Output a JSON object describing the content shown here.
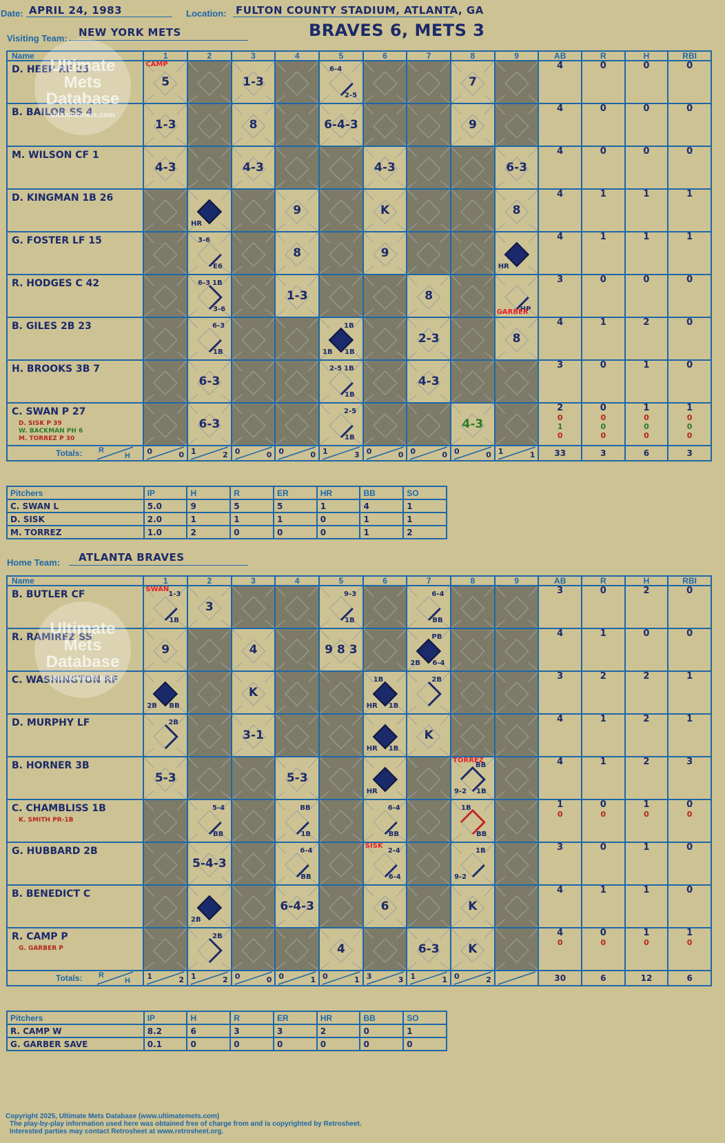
{
  "header": {
    "date_label": "Date:",
    "date": "APRIL 24, 1983",
    "location_label": "Location:",
    "location": "FULTON COUNTY STADIUM, ATLANTA, GA",
    "visiting_label": "Visiting Team:",
    "visiting_team": "NEW YORK METS",
    "home_label": "Home Team:",
    "home_team": "ATLANTA BRAVES",
    "final_score": "BRAVES 6, METS 3"
  },
  "columns": {
    "name": "Name",
    "innings": [
      "1",
      "2",
      "3",
      "4",
      "5",
      "6",
      "7",
      "8",
      "9"
    ],
    "stats": [
      "AB",
      "R",
      "H",
      "RBI"
    ],
    "totals": "Totals:",
    "rh_r": "R",
    "rh_h": "H"
  },
  "pitch_columns": [
    "Pitchers",
    "IP",
    "H",
    "R",
    "ER",
    "HR",
    "BB",
    "SO"
  ],
  "watermark": {
    "line1": "Ultimate",
    "line2": "Mets",
    "line3": "Database",
    "line4": "ultimatemets.com"
  },
  "visitors": {
    "lineup": [
      {
        "name": "D. HEEP RF  25",
        "subs": [],
        "cells": [
          {
            "i": 1,
            "t": "5",
            "top": "CAMP"
          },
          {
            "i": 3,
            "t": "1-3"
          },
          {
            "i": 5,
            "t": "",
            "ul": "6-4",
            "br": "2-5",
            "path": "first"
          },
          {
            "i": 8,
            "t": "7"
          }
        ],
        "dark": [
          2,
          4,
          6,
          7,
          9
        ],
        "stats": [
          [
            "4",
            "0",
            "0",
            "0"
          ]
        ]
      },
      {
        "name": "B. BAILOR SS  4",
        "subs": [],
        "cells": [
          {
            "i": 1,
            "t": "1-3"
          },
          {
            "i": 3,
            "t": "8"
          },
          {
            "i": 5,
            "t": "6-4-3"
          },
          {
            "i": 8,
            "t": "9"
          }
        ],
        "dark": [
          2,
          4,
          6,
          7,
          9
        ],
        "stats": [
          [
            "4",
            "0",
            "0",
            "0"
          ]
        ]
      },
      {
        "name": "M. WILSON CF  1",
        "subs": [],
        "cells": [
          {
            "i": 1,
            "t": "4-3"
          },
          {
            "i": 3,
            "t": "4-3"
          },
          {
            "i": 6,
            "t": "4-3"
          },
          {
            "i": 9,
            "t": "6-3"
          }
        ],
        "dark": [
          2,
          4,
          5,
          7,
          8
        ],
        "stats": [
          [
            "4",
            "0",
            "0",
            "0"
          ]
        ]
      },
      {
        "name": "D. KINGMAN 1B  26",
        "subs": [],
        "cells": [
          {
            "i": 2,
            "t": "",
            "bl": "HR",
            "path": "run"
          },
          {
            "i": 4,
            "t": "9"
          },
          {
            "i": 6,
            "t": "K"
          },
          {
            "i": 9,
            "t": "8"
          }
        ],
        "dark": [
          1,
          3,
          5,
          7,
          8
        ],
        "stats": [
          [
            "4",
            "1",
            "1",
            "1"
          ]
        ]
      },
      {
        "name": "G. FOSTER LF  15",
        "subs": [],
        "cells": [
          {
            "i": 2,
            "t": "",
            "ul": "3-6",
            "br": "E6",
            "path": "first"
          },
          {
            "i": 4,
            "t": "8"
          },
          {
            "i": 6,
            "t": "9"
          },
          {
            "i": 9,
            "t": "",
            "bl": "HR",
            "path": "run"
          }
        ],
        "dark": [
          1,
          3,
          5,
          7,
          8
        ],
        "stats": [
          [
            "4",
            "1",
            "1",
            "1"
          ]
        ]
      },
      {
        "name": "R. HODGES C  42",
        "subs": [],
        "cells": [
          {
            "i": 2,
            "t": "",
            "ul": "6-3",
            "ur": "1B",
            "br": "3-6",
            "path": "second"
          },
          {
            "i": 4,
            "t": "1-3"
          },
          {
            "i": 7,
            "t": "8"
          },
          {
            "i": 9,
            "t": "",
            "br": "HP",
            "bot": "GARBER",
            "path": "first"
          }
        ],
        "dark": [
          1,
          3,
          5,
          6,
          8
        ],
        "stats": [
          [
            "3",
            "0",
            "0",
            "0"
          ]
        ]
      },
      {
        "name": "B. GILES 2B  23",
        "subs": [],
        "cells": [
          {
            "i": 2,
            "t": "",
            "ur": "6-3",
            "br": "1B",
            "path": "first"
          },
          {
            "i": 5,
            "t": "",
            "ur": "1B",
            "bl": "1B",
            "br": "1B",
            "path": "run"
          },
          {
            "i": 7,
            "t": "2-3"
          },
          {
            "i": 9,
            "t": "8"
          }
        ],
        "dark": [
          1,
          3,
          4,
          6,
          8
        ],
        "stats": [
          [
            "4",
            "1",
            "2",
            "0"
          ]
        ]
      },
      {
        "name": "H. BROOKS 3B  7",
        "subs": [],
        "cells": [
          {
            "i": 2,
            "t": "6-3"
          },
          {
            "i": 5,
            "t": "",
            "ul": "2-5",
            "ur": "1B",
            "br": "1B",
            "path": "first"
          },
          {
            "i": 7,
            "t": "4-3"
          }
        ],
        "dark": [
          1,
          3,
          4,
          6,
          8,
          9
        ],
        "stats": [
          [
            "3",
            "0",
            "1",
            "0"
          ]
        ]
      },
      {
        "name": "C. SWAN P  27",
        "subs": [
          {
            "t": "D. SISK P  39",
            "c": "r"
          },
          {
            "t": "W. BACKMAN PH  6",
            "c": "g"
          },
          {
            "t": "M. TORREZ P  30",
            "c": "r"
          }
        ],
        "cells": [
          {
            "i": 2,
            "t": "6-3"
          },
          {
            "i": 5,
            "t": "",
            "ur": "2-5",
            "br": "1B",
            "path": "first"
          },
          {
            "i": 8,
            "t": "4-3",
            "green": true
          }
        ],
        "dark": [
          1,
          3,
          4,
          6,
          7,
          9
        ],
        "stats": [
          [
            "2",
            "0",
            "1",
            "1"
          ],
          [
            "0",
            "0",
            "0",
            "0",
            "r"
          ],
          [
            "1",
            "0",
            "0",
            "0",
            "g"
          ],
          [
            "0",
            "0",
            "0",
            "0",
            "r"
          ]
        ]
      }
    ],
    "totals_rh": [
      [
        "0",
        "0"
      ],
      [
        "1",
        "2"
      ],
      [
        "0",
        "0"
      ],
      [
        "0",
        "0"
      ],
      [
        "1",
        "3"
      ],
      [
        "0",
        "0"
      ],
      [
        "0",
        "0"
      ],
      [
        "0",
        "0"
      ],
      [
        "1",
        "1"
      ]
    ],
    "totals_stats": [
      "33",
      "3",
      "6",
      "3"
    ],
    "pitchers": [
      [
        "C. SWAN  L",
        "5.0",
        "9",
        "5",
        "5",
        "1",
        "4",
        "1"
      ],
      [
        "D. SISK",
        "2.0",
        "1",
        "1",
        "1",
        "0",
        "1",
        "1"
      ],
      [
        "M. TORREZ",
        "1.0",
        "2",
        "0",
        "0",
        "0",
        "1",
        "2"
      ]
    ]
  },
  "home": {
    "lineup": [
      {
        "name": "B. BUTLER CF",
        "subs": [],
        "cells": [
          {
            "i": 1,
            "t": "",
            "ur": "1-3",
            "br": "1B",
            "top": "SWAN",
            "path": "first"
          },
          {
            "i": 2,
            "t": "3"
          },
          {
            "i": 5,
            "t": "",
            "ur": "9-3",
            "br": "1B",
            "path": "first"
          },
          {
            "i": 7,
            "t": "",
            "ur": "6-4",
            "br": "BB",
            "path": "first"
          }
        ],
        "dark": [
          3,
          4,
          6,
          8,
          9
        ],
        "stats": [
          [
            "3",
            "0",
            "2",
            "0"
          ]
        ]
      },
      {
        "name": "R. RAMIREZ SS",
        "subs": [],
        "cells": [
          {
            "i": 1,
            "t": "9"
          },
          {
            "i": 3,
            "t": "4"
          },
          {
            "i": 5,
            "t": "9 8 3"
          },
          {
            "i": 7,
            "t": "",
            "ur": "PB",
            "bl": "2B",
            "br": "6-4",
            "path": "run"
          }
        ],
        "dark": [
          2,
          4,
          6,
          8,
          9
        ],
        "stats": [
          [
            "4",
            "1",
            "0",
            "0"
          ]
        ]
      },
      {
        "name": "C. WASHINGTON RF",
        "subs": [],
        "cells": [
          {
            "i": 1,
            "t": "",
            "bl": "2B",
            "br": "BB",
            "path": "run"
          },
          {
            "i": 3,
            "t": "K"
          },
          {
            "i": 6,
            "t": "",
            "ul": "1B",
            "bl": "HR",
            "br": "1B",
            "path": "run"
          },
          {
            "i": 7,
            "t": "",
            "ur": "2B",
            "path": "second"
          }
        ],
        "dark": [
          2,
          4,
          5,
          8,
          9
        ],
        "stats": [
          [
            "3",
            "2",
            "2",
            "1"
          ]
        ]
      },
      {
        "name": "D. MURPHY LF",
        "subs": [],
        "cells": [
          {
            "i": 1,
            "t": "",
            "ur": "2B",
            "path": "second"
          },
          {
            "i": 3,
            "t": "3-1"
          },
          {
            "i": 6,
            "t": "",
            "bl": "HR",
            "br": "1B",
            "path": "run"
          },
          {
            "i": 7,
            "t": "K"
          }
        ],
        "dark": [
          2,
          4,
          5,
          8,
          9
        ],
        "stats": [
          [
            "4",
            "1",
            "2",
            "1"
          ]
        ]
      },
      {
        "name": "B. HORNER 3B",
        "subs": [],
        "cells": [
          {
            "i": 1,
            "t": "5-3"
          },
          {
            "i": 4,
            "t": "5-3"
          },
          {
            "i": 6,
            "t": "",
            "bl": "HR",
            "path": "run"
          },
          {
            "i": 8,
            "t": "",
            "ur": "BB",
            "bl": "9-2",
            "br": "1B",
            "top": "TORREZ",
            "path": "third"
          }
        ],
        "dark": [
          2,
          3,
          5,
          7,
          9
        ],
        "stats": [
          [
            "4",
            "1",
            "2",
            "3"
          ]
        ]
      },
      {
        "name": "C. CHAMBLISS 1B",
        "subs": [
          {
            "t": "K. SMITH PR-1B",
            "c": "r"
          }
        ],
        "cells": [
          {
            "i": 2,
            "t": "",
            "ur": "5-4",
            "br": "BB",
            "path": "first"
          },
          {
            "i": 4,
            "t": "",
            "ur": "BB",
            "br": "1B",
            "path": "first"
          },
          {
            "i": 6,
            "t": "",
            "ur": "6-4",
            "br": "BB",
            "path": "first"
          },
          {
            "i": 8,
            "t": "",
            "ul": "1B",
            "br": "BB",
            "path": "thirdred"
          }
        ],
        "dark": [
          1,
          3,
          5,
          7,
          9
        ],
        "stats": [
          [
            "1",
            "0",
            "1",
            "0"
          ],
          [
            "0",
            "0",
            "0",
            "0",
            "r"
          ]
        ]
      },
      {
        "name": "G. HUBBARD 2B",
        "subs": [],
        "cells": [
          {
            "i": 2,
            "t": "5-4-3"
          },
          {
            "i": 4,
            "t": "",
            "ur": "6-4",
            "br": "BB",
            "path": "first"
          },
          {
            "i": 6,
            "t": "",
            "ur": "2-4",
            "br": "6-4",
            "top": "SISK",
            "path": "first"
          },
          {
            "i": 8,
            "t": "",
            "ur": "1B",
            "bl": "9-2",
            "path": "first"
          }
        ],
        "dark": [
          1,
          3,
          5,
          7,
          9
        ],
        "stats": [
          [
            "3",
            "0",
            "1",
            "0"
          ]
        ]
      },
      {
        "name": "B. BENEDICT C",
        "subs": [],
        "cells": [
          {
            "i": 2,
            "t": "",
            "bl": "2B",
            "path": "run"
          },
          {
            "i": 4,
            "t": "6-4-3"
          },
          {
            "i": 6,
            "t": "6"
          },
          {
            "i": 8,
            "t": "K"
          }
        ],
        "dark": [
          1,
          3,
          5,
          7,
          9
        ],
        "stats": [
          [
            "4",
            "1",
            "1",
            "0"
          ]
        ]
      },
      {
        "name": "R. CAMP P",
        "subs": [
          {
            "t": "G. GARBER P",
            "c": "r"
          }
        ],
        "cells": [
          {
            "i": 2,
            "t": "",
            "ur": "2B",
            "path": "second"
          },
          {
            "i": 5,
            "t": "4"
          },
          {
            "i": 7,
            "t": "6-3"
          },
          {
            "i": 8,
            "t": "K"
          }
        ],
        "dark": [
          1,
          3,
          4,
          6,
          9
        ],
        "stats": [
          [
            "4",
            "0",
            "1",
            "1"
          ],
          [
            "0",
            "0",
            "0",
            "0",
            "r"
          ]
        ]
      }
    ],
    "totals_rh": [
      [
        "1",
        "2"
      ],
      [
        "1",
        "2"
      ],
      [
        "0",
        "0"
      ],
      [
        "0",
        "1"
      ],
      [
        "0",
        "1"
      ],
      [
        "3",
        "3"
      ],
      [
        "1",
        "1"
      ],
      [
        "0",
        "2"
      ],
      [
        "",
        ""
      ]
    ],
    "totals_stats": [
      "30",
      "6",
      "12",
      "6"
    ],
    "pitchers": [
      [
        "R. CAMP  W",
        "8.2",
        "6",
        "3",
        "3",
        "2",
        "0",
        "1"
      ],
      [
        "G. GARBER  SAVE",
        "0.1",
        "0",
        "0",
        "0",
        "0",
        "0",
        "0"
      ]
    ]
  },
  "footer": {
    "line1": "Copyright 2025, Ultimate Mets Database (www.ultimatemets.com)",
    "line2": "The play-by-play information used here was obtained free of charge from and is copyrighted by Retrosheet.",
    "line3": "Interested parties may contact Retrosheet at www.retrosheet.org."
  }
}
